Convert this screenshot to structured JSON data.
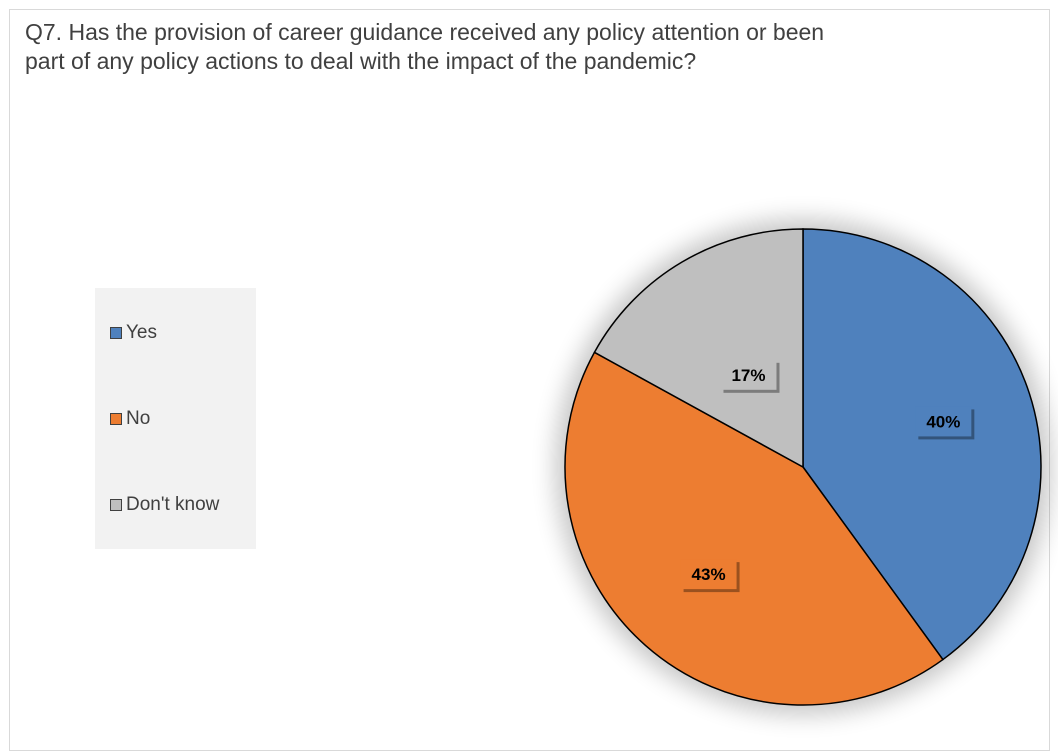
{
  "chart_data": {
    "type": "pie",
    "title": "Q7. Has the provision of career guidance received any policy attention or been part of any policy actions to deal with the impact of the pandemic?",
    "categories": [
      "Yes",
      "No",
      "Don't know"
    ],
    "values": [
      40,
      43,
      17
    ],
    "labels": [
      "40%",
      "43%",
      "17%"
    ],
    "colors": [
      "#4f81bd",
      "#ed7d31",
      "#bfbfbf"
    ],
    "legend_position": "left"
  }
}
